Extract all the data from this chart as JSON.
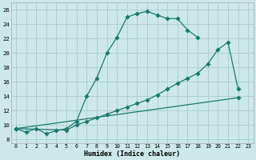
{
  "line1_x": [
    0,
    1,
    2,
    3,
    4,
    5,
    6,
    7,
    8,
    9,
    10,
    11,
    12,
    13,
    14,
    15,
    16,
    17,
    18
  ],
  "line1_y": [
    9.5,
    9.0,
    9.5,
    8.8,
    9.2,
    9.5,
    10.5,
    14.0,
    16.5,
    20.0,
    22.2,
    25.0,
    25.5,
    25.8,
    25.3,
    24.8,
    24.8,
    23.2,
    22.2
  ],
  "line2_x": [
    0,
    5,
    6,
    7,
    8,
    9,
    10,
    11,
    12,
    13,
    14,
    15,
    16,
    17,
    18,
    19,
    20,
    21,
    22
  ],
  "line2_y": [
    9.5,
    9.3,
    10.0,
    10.5,
    11.0,
    11.5,
    12.0,
    12.5,
    13.0,
    13.5,
    14.2,
    15.0,
    15.8,
    16.5,
    17.2,
    18.5,
    20.5,
    21.5,
    15.0
  ],
  "line3_x": [
    0,
    22
  ],
  "line3_y": [
    9.5,
    13.8
  ],
  "color": "#1a7a6e",
  "bg_color": "#cce8e8",
  "grid_major_color": "#aacccc",
  "grid_minor_color": "#bbdddd",
  "xlabel": "Humidex (Indice chaleur)",
  "xlim": [
    -0.5,
    23.5
  ],
  "ylim": [
    7.5,
    27
  ],
  "xticks": [
    0,
    1,
    2,
    3,
    4,
    5,
    6,
    7,
    8,
    9,
    10,
    11,
    12,
    13,
    14,
    15,
    16,
    17,
    18,
    19,
    20,
    21,
    22,
    23
  ],
  "yticks": [
    8,
    10,
    12,
    14,
    16,
    18,
    20,
    22,
    24,
    26
  ]
}
